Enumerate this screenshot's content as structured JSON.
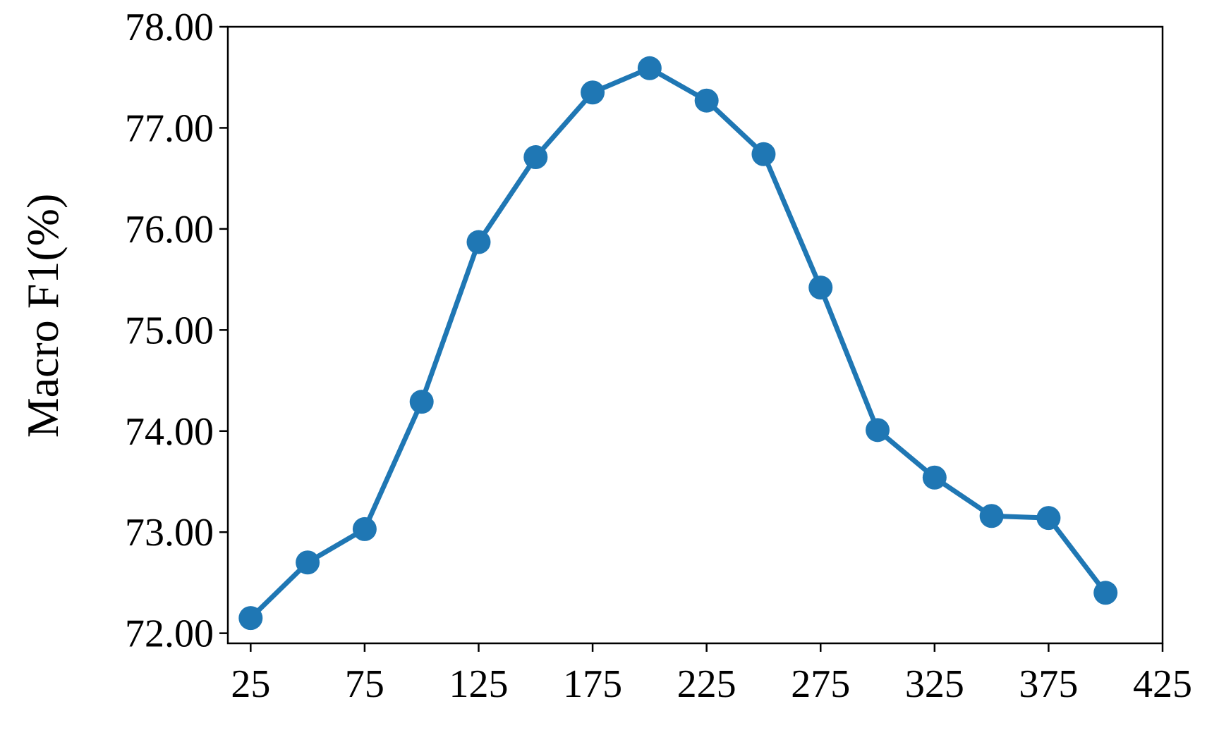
{
  "chart_data": {
    "type": "line",
    "title": "",
    "xlabel": "",
    "ylabel": "Macro F1(%)",
    "xlim": [
      15,
      425
    ],
    "ylim": [
      71.9,
      78.0
    ],
    "xticks": [
      25,
      75,
      125,
      175,
      225,
      275,
      325,
      375,
      425
    ],
    "xtick_labels": [
      "25",
      "75",
      "125",
      "175",
      "225",
      "275",
      "325",
      "375",
      "425"
    ],
    "yticks": [
      72,
      73,
      74,
      75,
      76,
      77,
      78
    ],
    "ytick_labels": [
      "72.00",
      "73.00",
      "74.00",
      "75.00",
      "76.00",
      "77.00",
      "78.00"
    ],
    "grid": false,
    "legend": "none",
    "series": [
      {
        "color": "#1f77b4",
        "marker": "circle",
        "x": [
          25,
          50,
          75,
          100,
          125,
          150,
          175,
          200,
          225,
          250,
          275,
          300,
          325,
          350,
          375,
          400
        ],
        "y": [
          72.15,
          72.7,
          73.03,
          74.29,
          75.87,
          76.71,
          77.35,
          77.59,
          77.27,
          76.74,
          75.42,
          74.01,
          73.54,
          73.16,
          73.14,
          72.4
        ]
      }
    ]
  }
}
